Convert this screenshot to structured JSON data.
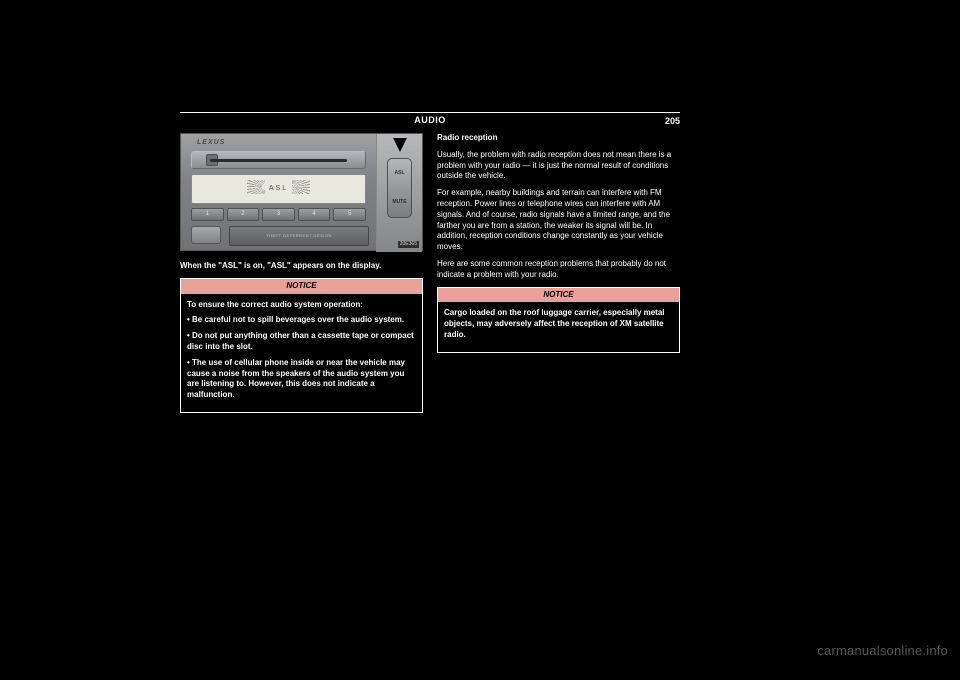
{
  "header": {
    "title": "AUDIO",
    "page_number": "205"
  },
  "radio": {
    "brand": "LEXUS",
    "display_text": "ASL",
    "presets": [
      "1",
      "2",
      "3",
      "4",
      "5"
    ],
    "lower_label": "THEFT  DETERRENT  DESIGN",
    "button_top": "ASL",
    "button_bottom": "MUTE",
    "image_code": "20E365"
  },
  "left": {
    "p1": "When the \"ASL\" is on, \"ASL\" appears on the display.",
    "notice_title": "NOTICE",
    "n1": "To ensure the correct audio system operation:",
    "n2": "• Be careful not to spill beverages over the audio system.",
    "n3": "• Do not put anything other than a cassette tape or compact disc into the slot.",
    "n4": "• The use of cellular phone inside or near the vehicle may cause a noise from the speakers of the audio system you are listening to. However, this does not indicate a malfunction."
  },
  "right": {
    "h": "Radio reception",
    "p1": "Usually, the problem with radio reception does not mean there is a problem with your radio — it is just the normal result of conditions outside the vehicle.",
    "p2": "For example, nearby buildings and terrain can interfere with FM reception. Power lines or telephone wires can interfere with AM signals. And of course, radio signals have a limited range, and the farther you are from a station, the weaker its signal will be. In addition, reception conditions change constantly as your vehicle moves.",
    "p3": "Here are some common reception problems that probably do not indicate a problem with your radio.",
    "notice_title": "NOTICE",
    "n1": "Cargo loaded on the roof luggage carrier, especially metal objects, may adversely affect the reception of XM satellite radio."
  },
  "watermark": "carmanualsonline.info",
  "colors": {
    "bg": "#000000",
    "text": "#ffffff",
    "notice_bg": "#e9a09a",
    "watermark": "#565656"
  }
}
